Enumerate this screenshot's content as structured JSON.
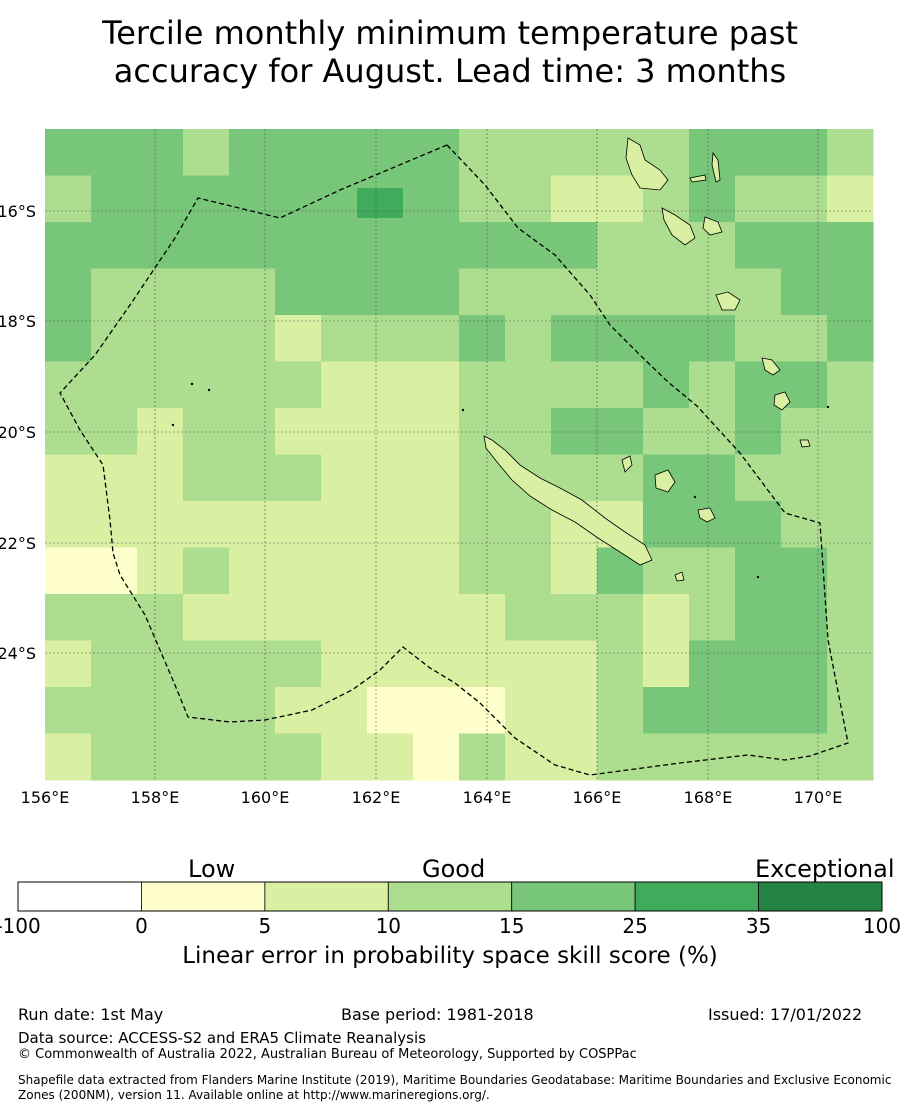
{
  "title": {
    "line1": "Tercile monthly minimum temperature past",
    "line2": "accuracy for August. Lead time: 3 months"
  },
  "map": {
    "lon_range": [
      156,
      171
    ],
    "lat_range": [
      -26.5,
      -14.7
    ],
    "lon_ticks": [
      "156°E",
      "158°E",
      "160°E",
      "162°E",
      "164°E",
      "166°E",
      "168°E",
      "170°E"
    ],
    "lat_ticks": [
      "16°S",
      "18°S",
      "20°S",
      "22°S",
      "24°S"
    ],
    "cell_size_deg": 0.833,
    "ocean_color": "#ffffff",
    "coast_color": "#000000",
    "boundary_style": "dashed"
  },
  "colorbar": {
    "category_labels": [
      "Low",
      "Good",
      "Exceptional"
    ],
    "tick_labels": [
      "-100",
      "0",
      "5",
      "10",
      "15",
      "25",
      "35",
      "100"
    ],
    "colors": [
      "#ffffff",
      "#ffffcc",
      "#d9f0a3",
      "#addd8e",
      "#78c679",
      "#41ab5d",
      "#238443"
    ],
    "title": "Linear error in probability space skill score (%)"
  },
  "footer": {
    "run_date": "Run date: 1st May",
    "base_period": "Base period: 1981-2018",
    "issued": "Issued: 17/01/2022",
    "data_source": "Data source: ACCESS-S2 and ERA5 Climate Reanalysis",
    "copyright": "© Commonwealth of Australia 2022, Australian Bureau of Meteorology, Supported by COSPPac",
    "shapefile": "Shapefile data extracted from Flanders Marine Institute (2019), Maritime Boundaries Geodatabase: Maritime Boundaries and Exclusive Economic Zones (200NM), version 11. Available online at http://www.marineregions.org/."
  }
}
